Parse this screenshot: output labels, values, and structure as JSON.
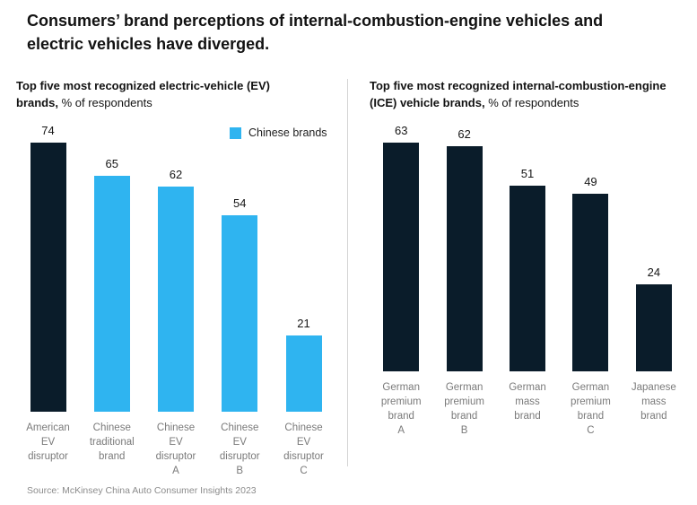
{
  "title": "Consumers’ brand perceptions of internal-combustion-engine vehicles and electric vehicles have diverged.",
  "source": "Source: McKinsey China Auto Consumer Insights 2023",
  "legend": {
    "label": "Chinese brands",
    "color": "#2fb4f0"
  },
  "colors": {
    "dark": "#0a1c2a",
    "blue": "#2fb4f0"
  },
  "chart_data": [
    {
      "type": "bar",
      "title_bold": "Top five most recognized electric-vehicle (EV) brands,",
      "title_suffix": " % of respondents",
      "categories": [
        "American\nEV\ndisruptor",
        "Chinese\ntraditional\nbrand",
        "Chinese\nEV\ndisruptor\nA",
        "Chinese\nEV\ndisruptor\nB",
        "Chinese\nEV\ndisruptor\nC"
      ],
      "values": [
        74,
        65,
        62,
        54,
        21
      ],
      "bar_colors": [
        "dark",
        "blue",
        "blue",
        "blue",
        "blue"
      ],
      "ylim": [
        0,
        80
      ],
      "grid": false,
      "legend": "Chinese brands",
      "legend_position": "top-right",
      "xlabel": "",
      "ylabel": "% of respondents"
    },
    {
      "type": "bar",
      "title_bold": "Top five most recognized internal-combustion-engine (ICE) vehicle brands,",
      "title_suffix": " % of respondents",
      "categories": [
        "German\npremium\nbrand\nA",
        "German\npremium\nbrand\nB",
        "German\nmass\nbrand",
        "German\npremium\nbrand\nC",
        "Japanese\nmass\nbrand"
      ],
      "values": [
        63,
        62,
        51,
        49,
        24
      ],
      "bar_colors": [
        "dark",
        "dark",
        "dark",
        "dark",
        "dark"
      ],
      "ylim": [
        0,
        80
      ],
      "grid": false,
      "xlabel": "",
      "ylabel": "% of respondents"
    }
  ]
}
